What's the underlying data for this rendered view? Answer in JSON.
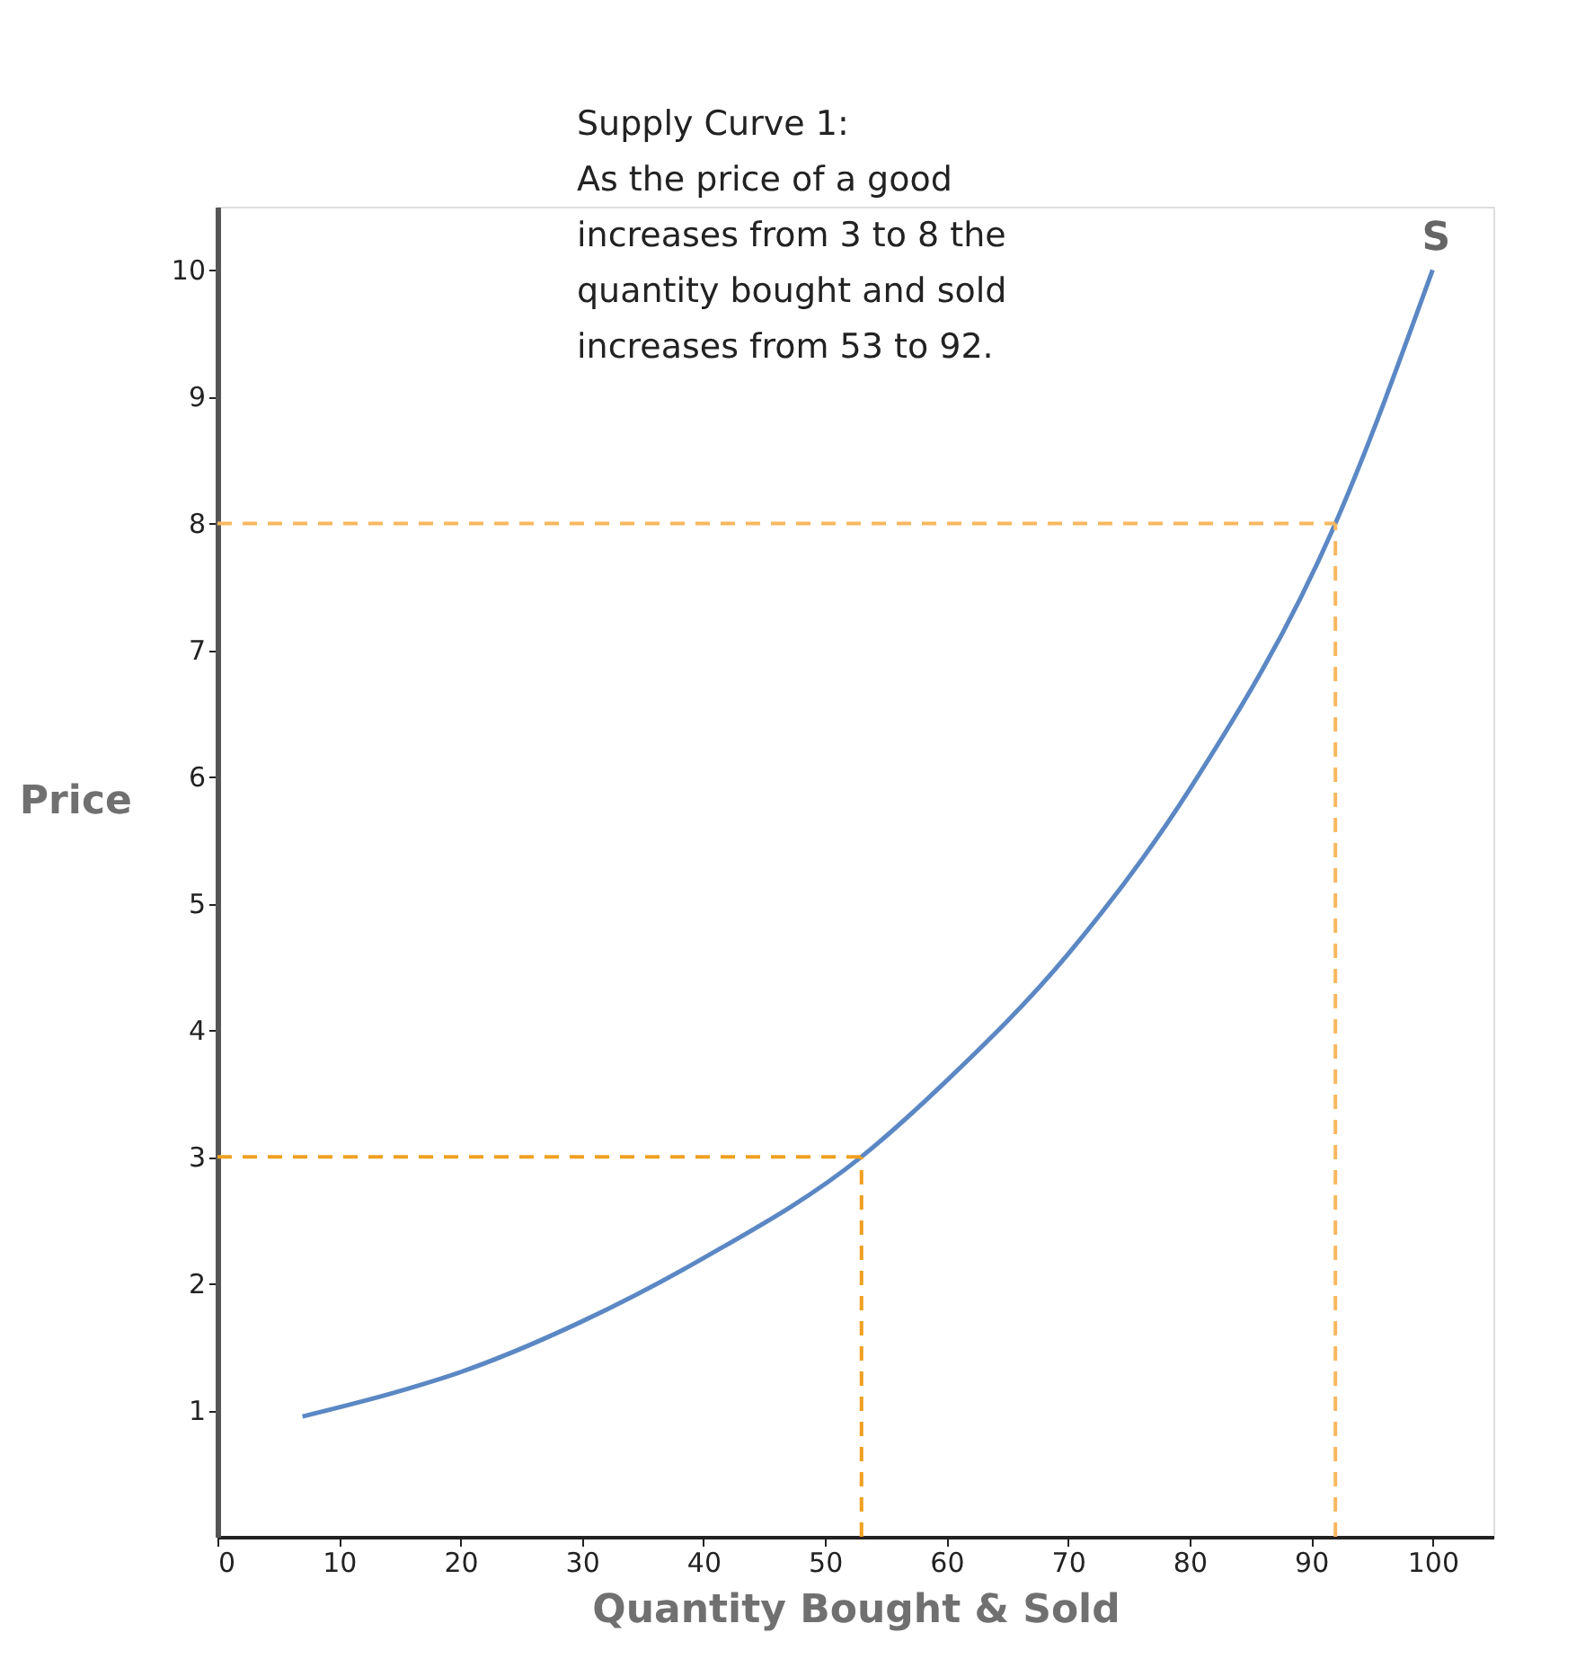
{
  "chart_data": {
    "type": "line",
    "title": "Supply Curve 1:",
    "subtitle": "As the price of a good\nincreases from 3 to 8 the\nquantity bought and sold\nincreases from 53 to 92.",
    "xlabel": "Quantity Bought & Sold",
    "ylabel": "Price",
    "x": [
      7,
      15,
      20,
      30,
      40,
      53,
      60,
      70,
      80,
      92,
      100
    ],
    "series": [
      {
        "name": "S",
        "color": "#5b88c4",
        "values": [
          0.95,
          1.15,
          1.3,
          1.7,
          2.2,
          3,
          3.6,
          4.6,
          5.9,
          8,
          10
        ]
      }
    ],
    "xlim": [
      0,
      105
    ],
    "ylim": [
      0,
      10.5
    ],
    "xticks": [
      0,
      10,
      20,
      30,
      40,
      50,
      60,
      70,
      80,
      90,
      100
    ],
    "yticks": [
      1,
      2,
      3,
      4,
      5,
      6,
      7,
      8,
      9,
      10
    ],
    "ref_lines": [
      {
        "axis": "y",
        "value": 3,
        "color": "#f0a020",
        "line_style": "dashed"
      },
      {
        "axis": "x",
        "value": 53,
        "color": "#f0a020",
        "line_style": "dashed"
      },
      {
        "axis": "y",
        "value": 8,
        "color": "#f8b860",
        "line_style": "dashed"
      },
      {
        "axis": "x",
        "value": 92,
        "color": "#f8b860",
        "line_style": "dashed"
      }
    ],
    "line_style": "solid"
  }
}
